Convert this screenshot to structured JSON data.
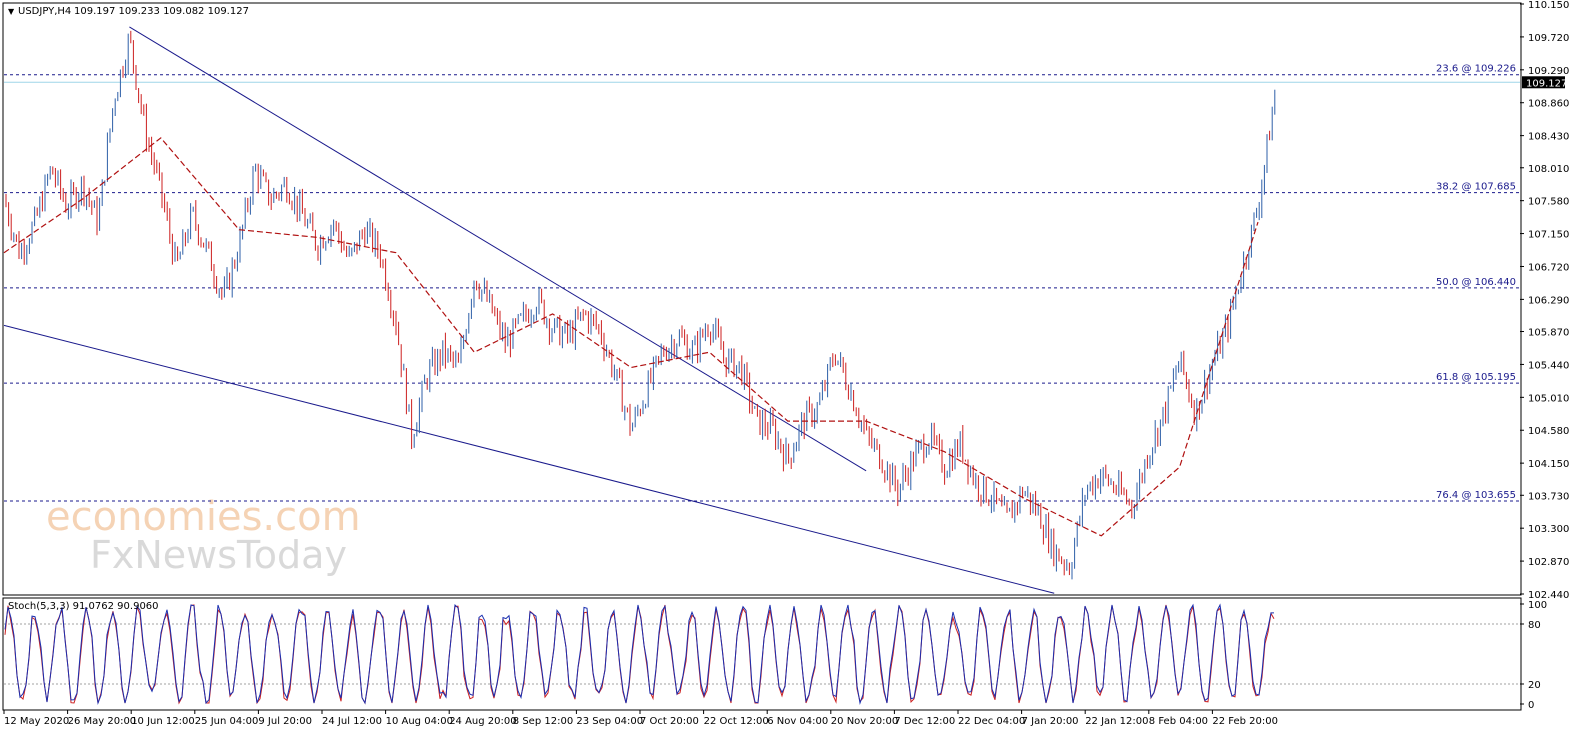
{
  "header": {
    "symbol": "USDJPY,H4",
    "ohlc": "109.197 109.233 109.082 109.127",
    "arrow": "▼"
  },
  "stoch_header": "Stoch(5,3,3) 91.0762 90.9060",
  "watermark": {
    "line1": "economies.com",
    "line2": "FxNewsToday"
  },
  "colors": {
    "candle_up": "#2e5fa8",
    "candle_down": "#cc1f1f",
    "ma": "#b01010",
    "trend": "#1a1a8c",
    "fib": "#1a1a8c",
    "current": "#9fd6e8",
    "stoch_main": "#1a2fb0",
    "stoch_signal": "#cc1f1f"
  },
  "chart_data": {
    "type": "line",
    "title": "USDJPY,H4",
    "price_axis": {
      "ticks": [
        "110.150",
        "109.720",
        "109.290",
        "108.860",
        "108.430",
        "108.010",
        "107.580",
        "107.150",
        "106.720",
        "106.290",
        "105.870",
        "105.440",
        "105.010",
        "104.580",
        "104.150",
        "103.730",
        "103.300",
        "102.870",
        "102.440"
      ],
      "ylim": [
        102.44,
        110.15
      ],
      "current": "109.127"
    },
    "time_axis": {
      "ticks": [
        "12 May 2020",
        "26 May 20:00",
        "10 Jun 12:00",
        "25 Jun 04:00",
        "9 Jul 20:00",
        "24 Jul 12:00",
        "10 Aug 04:00",
        "24 Aug 20:00",
        "8 Sep 12:00",
        "23 Sep 04:00",
        "7 Oct 20:00",
        "22 Oct 12:00",
        "6 Nov 04:00",
        "20 Nov 20:00",
        "7 Dec 12:00",
        "22 Dec 04:00",
        "7 Jan 20:00",
        "22 Jan 12:00",
        "8 Feb 04:00",
        "22 Feb 20:00"
      ]
    },
    "series": [
      {
        "name": "",
        "kind": "price",
        "x": [
          0,
          1,
          2,
          3,
          4,
          5,
          6,
          7,
          8,
          9,
          10,
          11,
          12,
          13,
          14,
          15,
          16,
          17,
          18,
          19,
          20,
          21,
          22,
          23,
          24,
          25,
          26,
          27,
          28,
          29,
          30,
          31,
          32,
          33,
          34,
          35,
          36,
          37,
          38,
          39,
          40,
          41,
          42,
          43,
          44,
          45,
          46,
          47,
          48,
          49,
          50,
          51,
          52,
          53,
          54,
          55,
          56,
          57,
          58,
          59,
          60,
          61,
          62,
          63,
          64,
          65,
          66,
          67,
          68,
          69,
          70,
          71,
          72,
          73,
          74,
          75,
          76,
          77,
          78,
          79,
          80
        ],
        "y": [
          107.6,
          106.9,
          107.3,
          108.0,
          107.5,
          107.8,
          107.3,
          108.9,
          109.7,
          108.5,
          107.7,
          106.7,
          107.4,
          106.9,
          106.3,
          107.0,
          108.0,
          107.6,
          107.8,
          107.4,
          107.0,
          107.3,
          106.8,
          107.2,
          106.9,
          106.0,
          104.5,
          105.3,
          105.6,
          105.4,
          106.6,
          106.2,
          105.7,
          106.0,
          106.3,
          105.9,
          105.8,
          106.1,
          105.9,
          105.3,
          104.6,
          105.1,
          105.6,
          105.8,
          105.6,
          106.0,
          105.5,
          105.4,
          104.7,
          104.6,
          104.2,
          104.7,
          104.9,
          105.6,
          105.1,
          104.5,
          104.2,
          103.8,
          104.2,
          104.5,
          104.1,
          104.4,
          103.9,
          103.7,
          103.4,
          103.8,
          103.5,
          103.0,
          102.8,
          103.8,
          104.0,
          103.8,
          103.6,
          104.3,
          104.8,
          105.5,
          104.8,
          105.4,
          105.9,
          106.7,
          107.5
        ],
        "last": 109.127
      },
      {
        "name": "",
        "kind": "moving-average",
        "x": [
          0,
          5,
          10,
          15,
          20,
          25,
          30,
          35,
          40,
          45,
          50,
          55,
          60,
          65,
          70,
          75,
          80
        ],
        "y": [
          106.9,
          107.6,
          108.4,
          107.2,
          107.1,
          106.9,
          105.6,
          106.1,
          105.4,
          105.6,
          104.7,
          104.7,
          104.3,
          103.7,
          103.2,
          104.1,
          107.3
        ]
      }
    ],
    "fib_levels": [
      {
        "label": "23.6 @ 109.226",
        "value": 109.226
      },
      {
        "label": "38.2 @ 107.685",
        "value": 107.685
      },
      {
        "label": "50.0 @ 106.440",
        "value": 106.44
      },
      {
        "label": "61.8 @ 105.195",
        "value": 105.195
      },
      {
        "label": "76.4 @ 103.655",
        "value": 103.655
      }
    ],
    "trendlines": [
      {
        "from": [
          8,
          109.85
        ],
        "to": [
          55,
          104.05
        ]
      },
      {
        "from": [
          0,
          105.95
        ],
        "to": [
          67,
          102.45
        ]
      }
    ],
    "stochastic": {
      "ticks": [
        "100",
        "80",
        "20",
        "0"
      ],
      "levels": [
        80,
        20
      ],
      "ylim": [
        0,
        100
      ],
      "main": 91.0762,
      "signal": 90.906
    }
  }
}
